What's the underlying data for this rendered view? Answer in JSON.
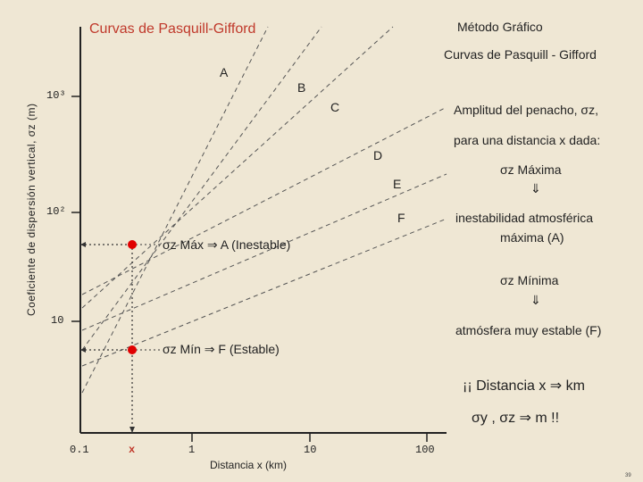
{
  "title_left": "Curvas de Pasquill-Gifford",
  "title_right": "Método Gráfico",
  "subtitle": "Curvas de Pasquill - Gifford",
  "y_axis_label": "Coeficiente de dispersión vertical, σz (m)",
  "x_axis_label": "Distancia x (km)",
  "y_ticks": [
    "10³",
    "10²",
    "10"
  ],
  "x_ticks": [
    "0.1",
    "x",
    "1",
    "10",
    "100"
  ],
  "curve_labels": [
    "A",
    "B",
    "C",
    "D",
    "E",
    "F"
  ],
  "annotation_max": "σz Máx ⇒ A (Inestable)",
  "annotation_min": "σz Mín ⇒ F (Estable)",
  "notes": {
    "line1": "Amplitud del penacho, σz,",
    "line2": "para una distancia x dada:",
    "max_heading": "σz Máxima",
    "arrow1": "⇓",
    "unstable": "inestabilidad atmosférica",
    "unstable2": "máxima (A)",
    "min_heading": "σz Mínima",
    "arrow2": "⇓",
    "stable": "atmósfera muy estable (F)",
    "units1": "¡¡ Distancia x ⇒ km",
    "units2": "σy , σz ⇒ m !!"
  },
  "page_number": "39",
  "colors": {
    "marker": "#e00000",
    "title_red": "#c0392b",
    "background": "#efe7d4"
  }
}
